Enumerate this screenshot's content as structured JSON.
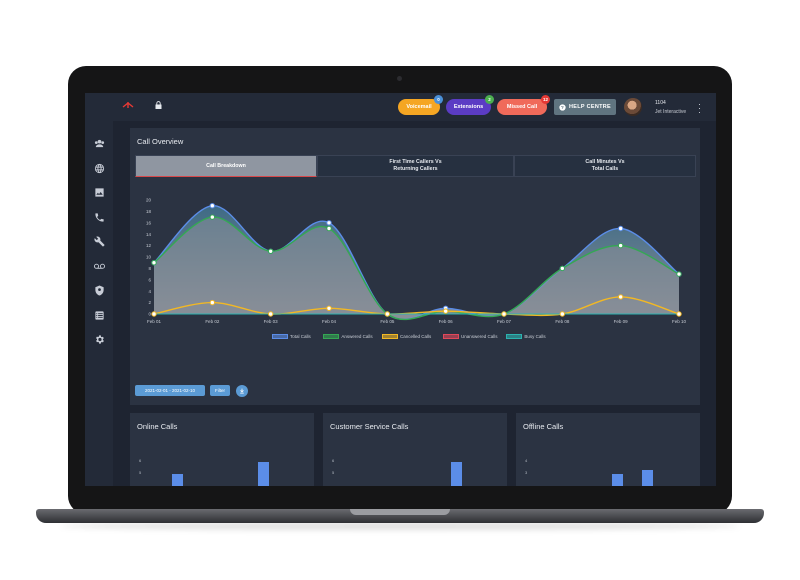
{
  "topbar": {
    "pills": [
      {
        "label": "Voicemail",
        "badge": "0",
        "color": "#f5a623",
        "badge_color": "#4a90d9"
      },
      {
        "label": "Extensions",
        "badge": "2",
        "color": "#5b3cc4",
        "badge_color": "#4caf50"
      },
      {
        "label": "Missed Call",
        "badge": "12",
        "color": "#f06a5a",
        "badge_color": "#e53935"
      }
    ],
    "help_label": "HELP CENTRE",
    "user_ext": "1104",
    "user_company": "Jet Interactive"
  },
  "sidebar": {
    "icons": [
      "users-icon",
      "globe-icon",
      "image-icon",
      "phone-icon",
      "wrench-icon",
      "voicemail-icon",
      "shield-icon",
      "list-icon",
      "gear-icon"
    ]
  },
  "overview": {
    "title": "Call Overview",
    "tabs": [
      {
        "label": "Call Breakdown",
        "active": true
      },
      {
        "label": "First Time Callers Vs\nReturning Callers",
        "active": false
      },
      {
        "label": "Call Minutes Vs\nTotal Calls",
        "active": false
      }
    ],
    "date_range": "2021-02-01 - 2021-02-10",
    "filter_label": "Filter"
  },
  "chart_data": {
    "type": "area",
    "categories": [
      "Feb 01",
      "Feb 02",
      "Feb 03",
      "Feb 04",
      "Feb 05",
      "Feb 06",
      "Feb 07",
      "Feb 08",
      "Feb 09",
      "Feb 10"
    ],
    "ylim": [
      0,
      20
    ],
    "yticks": [
      0,
      2,
      4,
      6,
      8,
      10,
      12,
      14,
      16,
      18,
      20
    ],
    "series": [
      {
        "name": "Total Calls",
        "color": "#5b8de8",
        "values": [
          9,
          19,
          11,
          16,
          0,
          1,
          0,
          8,
          15,
          7
        ]
      },
      {
        "name": "Answered Calls",
        "color": "#34a853",
        "values": [
          9,
          17,
          11,
          15,
          0,
          0.5,
          0,
          8,
          12,
          7
        ]
      },
      {
        "name": "Cancelled Calls",
        "color": "#f2b824",
        "values": [
          0,
          2,
          0,
          1,
          0,
          0.5,
          0,
          0,
          3,
          0
        ]
      },
      {
        "name": "Unanswered Calls",
        "color": "#e0485a",
        "values": [
          0,
          0,
          0,
          0,
          0,
          0,
          0,
          0,
          0,
          0
        ]
      },
      {
        "name": "Busy Calls",
        "color": "#2bb3b0",
        "values": [
          0,
          0,
          0,
          0,
          0,
          0,
          0,
          0,
          0,
          0
        ]
      }
    ],
    "grid": false,
    "legend": "bottom"
  },
  "mini_cards": [
    {
      "title": "Online Calls",
      "ticks": [
        "6",
        "5"
      ],
      "bars": [
        3,
        6
      ]
    },
    {
      "title": "Customer Service Calls",
      "ticks": [
        "6",
        "5"
      ],
      "bars": [
        6
      ]
    },
    {
      "title": "Offline Calls",
      "ticks": [
        "4",
        "3"
      ],
      "bars": [
        3,
        4
      ]
    }
  ]
}
